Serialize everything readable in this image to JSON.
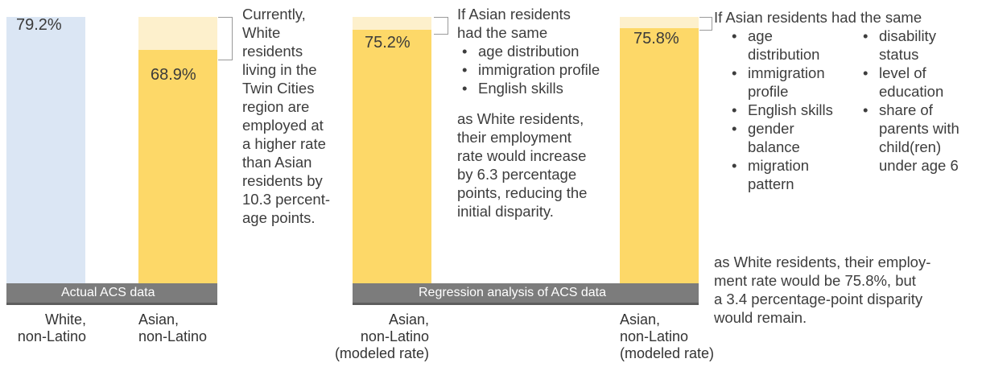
{
  "chart_data": {
    "type": "bar",
    "unit": "%",
    "ylim": [
      0,
      80
    ],
    "bars": [
      {
        "category": "White, non-Latino",
        "value": 79.2,
        "label": "79.2%"
      },
      {
        "category": "Asian, non-Latino",
        "value": 68.9,
        "label": "68.9%"
      },
      {
        "category": "Asian, non-Latino (modeled rate)",
        "value": 75.2,
        "label": "75.2%"
      },
      {
        "category": "Asian, non-Latino (modeled rate)",
        "value": 75.8,
        "label": "75.8%"
      }
    ],
    "reference_value": 79.2,
    "groups": [
      "Actual ACS data",
      "Regression analysis of ACS data"
    ]
  },
  "colors": {
    "white_bar": "#dbe6f4",
    "asian_bar": "#fdd868",
    "disparity_bar": "#fdf0cc",
    "group_band": "#7c7c7c"
  },
  "categories": {
    "c1": [
      "White,",
      "non-Latino"
    ],
    "c2": [
      "Asian,",
      "non-Latino"
    ],
    "c3": [
      "Asian,",
      "non-Latino",
      "(modeled rate)"
    ],
    "c4": [
      "Asian,",
      "non-Latino",
      "(modeled rate)"
    ]
  },
  "annotations": {
    "note1": [
      "Currently,",
      "White",
      "residents",
      "living in the",
      "Twin Cities",
      "region are",
      "employed at",
      "a higher rate",
      "than Asian",
      "residents by",
      "10.3 percent-",
      "age points."
    ],
    "note2": {
      "intro": [
        "If Asian residents",
        "had the same"
      ],
      "items": [
        "age distribution",
        "immigration profile",
        "English skills"
      ],
      "outro": [
        "as White residents,",
        "their employment",
        "rate would increase",
        "by 6.3 percentage",
        "points, reducing the",
        "initial disparity."
      ]
    },
    "note3": {
      "intro": "If Asian residents had the same",
      "col1": [
        [
          "age",
          "distribution"
        ],
        [
          "immigration",
          "profile"
        ],
        [
          "English skills"
        ],
        [
          "gender",
          "balance"
        ],
        [
          "migration",
          "pattern"
        ]
      ],
      "col2": [
        [
          "disability",
          "status"
        ],
        [
          "level of",
          "education"
        ],
        [
          "share of",
          "parents with",
          "child(ren)",
          "under age 6"
        ]
      ],
      "outro": [
        "as White residents, their employ-",
        "ment rate would be 75.8%, but",
        "a 3.4 percentage-point disparity",
        "would remain."
      ]
    }
  }
}
